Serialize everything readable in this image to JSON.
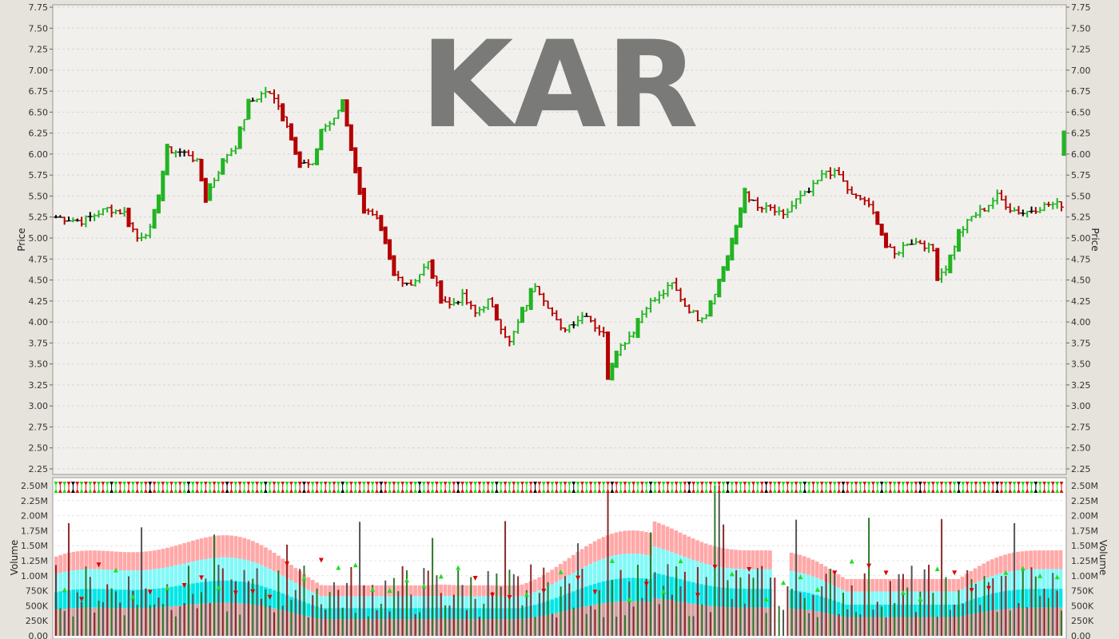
{
  "chart_data": [
    {
      "type": "ohlc",
      "title": "KAR",
      "ylabel": "Price",
      "ylim": [
        2.2,
        7.75
      ],
      "yticks": [
        "7.75",
        "7.50",
        "7.25",
        "7.00",
        "6.75",
        "6.50",
        "6.25",
        "6.00",
        "5.75",
        "5.50",
        "5.25",
        "5.00",
        "4.75",
        "4.50",
        "4.25",
        "4.00",
        "3.75",
        "3.50",
        "3.25",
        "3.00",
        "2.75",
        "2.50",
        "2.25"
      ],
      "series_colors": {
        "up": "#22b422",
        "down": "#b40000",
        "neutral": "#000000"
      },
      "anchors": [
        [
          0,
          5.25
        ],
        [
          6,
          5.2
        ],
        [
          12,
          5.35
        ],
        [
          16,
          5.3
        ],
        [
          19,
          5.0
        ],
        [
          22,
          5.1
        ],
        [
          24,
          5.5
        ],
        [
          26,
          6.05
        ],
        [
          31,
          6.0
        ],
        [
          33,
          5.9
        ],
        [
          35,
          5.5
        ],
        [
          37,
          5.7
        ],
        [
          40,
          6.0
        ],
        [
          42,
          6.1
        ],
        [
          45,
          6.6
        ],
        [
          49,
          6.75
        ],
        [
          52,
          6.6
        ],
        [
          55,
          6.2
        ],
        [
          57,
          5.9
        ],
        [
          60,
          5.85
        ],
        [
          62,
          6.3
        ],
        [
          65,
          6.4
        ],
        [
          67,
          6.65
        ],
        [
          70,
          5.8
        ],
        [
          72,
          5.35
        ],
        [
          75,
          5.2
        ],
        [
          77,
          4.95
        ],
        [
          79,
          4.55
        ],
        [
          83,
          4.45
        ],
        [
          87,
          4.7
        ],
        [
          90,
          4.3
        ],
        [
          92,
          4.2
        ],
        [
          95,
          4.3
        ],
        [
          98,
          4.1
        ],
        [
          101,
          4.25
        ],
        [
          104,
          3.95
        ],
        [
          106,
          3.75
        ],
        [
          109,
          4.1
        ],
        [
          112,
          4.45
        ],
        [
          115,
          4.2
        ],
        [
          118,
          3.9
        ],
        [
          121,
          4.0
        ],
        [
          124,
          4.1
        ],
        [
          126,
          3.95
        ],
        [
          128,
          3.85
        ],
        [
          129,
          3.35
        ],
        [
          131,
          3.65
        ],
        [
          135,
          3.9
        ],
        [
          138,
          4.2
        ],
        [
          141,
          4.3
        ],
        [
          144,
          4.45
        ],
        [
          147,
          4.2
        ],
        [
          150,
          4.05
        ],
        [
          152,
          4.1
        ],
        [
          155,
          4.5
        ],
        [
          157,
          4.8
        ],
        [
          159,
          5.1
        ],
        [
          161,
          5.55
        ],
        [
          164,
          5.35
        ],
        [
          167,
          5.35
        ],
        [
          170,
          5.25
        ],
        [
          173,
          5.45
        ],
        [
          176,
          5.55
        ],
        [
          180,
          5.8
        ],
        [
          183,
          5.75
        ],
        [
          186,
          5.5
        ],
        [
          189,
          5.45
        ],
        [
          192,
          5.2
        ],
        [
          194,
          4.9
        ],
        [
          196,
          4.8
        ],
        [
          199,
          4.95
        ],
        [
          202,
          4.95
        ],
        [
          205,
          4.85
        ],
        [
          206,
          4.55
        ],
        [
          208,
          4.65
        ],
        [
          211,
          5.05
        ],
        [
          214,
          5.25
        ],
        [
          217,
          5.35
        ],
        [
          220,
          5.5
        ],
        [
          223,
          5.35
        ],
        [
          226,
          5.3
        ],
        [
          229,
          5.35
        ],
        [
          232,
          5.4
        ],
        [
          235,
          5.4
        ]
      ],
      "last_close": 6.15
    },
    {
      "type": "bar",
      "ylabel": "Volume",
      "ylim": [
        0,
        2500000
      ],
      "yticks": [
        "2.50M",
        "2.25M",
        "2.00M",
        "1.75M",
        "1.50M",
        "1.25M",
        "1.00M",
        "750K",
        "500K",
        "250K",
        "0.00"
      ],
      "band_colors": [
        "#ffa8a8",
        "#82f8f8",
        "#00e6e6",
        "#d2a0a0"
      ]
    }
  ]
}
